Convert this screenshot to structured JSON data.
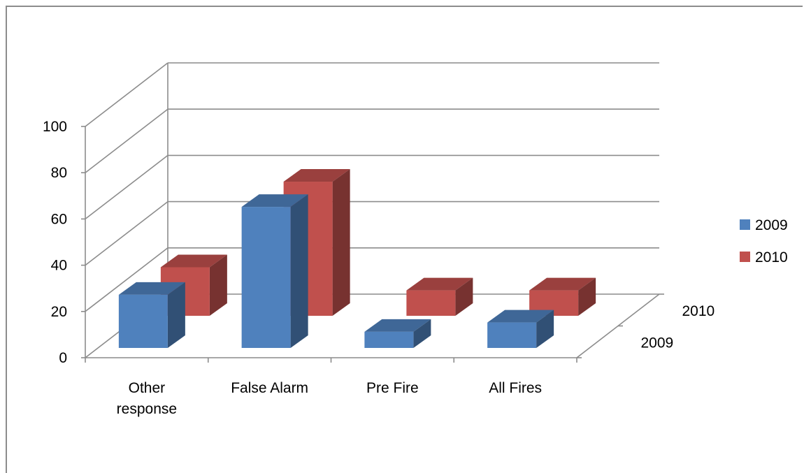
{
  "chart_data": {
    "type": "bar",
    "style": "3d-clustered-depth",
    "categories": [
      "Other response",
      "False Alarm",
      "Pre Fire",
      "All Fires"
    ],
    "category_label_lines": [
      [
        "Other",
        "response"
      ],
      [
        "False Alarm"
      ],
      [
        "Pre Fire"
      ],
      [
        "All Fires"
      ]
    ],
    "series": [
      {
        "name": "2009",
        "values": [
          23,
          61,
          7,
          11
        ],
        "color": "#4F81BD"
      },
      {
        "name": "2010",
        "values": [
          21,
          58,
          11,
          11
        ],
        "color": "#C0504D"
      }
    ],
    "yticks": [
      "0",
      "20",
      "40",
      "60",
      "80",
      "100"
    ],
    "ylim": [
      0,
      100
    ],
    "grid": true,
    "legend_position": "right",
    "depth_axis_labels": [
      "2009",
      "2010"
    ],
    "title": "",
    "xlabel": "",
    "ylabel": ""
  }
}
